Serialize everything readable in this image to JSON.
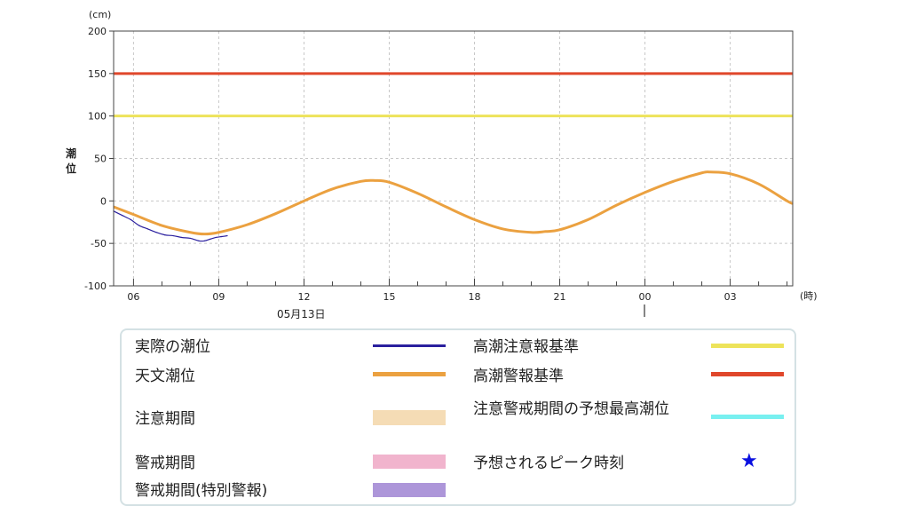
{
  "chart_data": {
    "type": "line",
    "y_unit": "(cm)",
    "ylabel": "潮位",
    "x_unit": "(時)",
    "date_label": "05月13日",
    "ylim": [
      -100,
      200
    ],
    "yticks": [
      200,
      150,
      100,
      50,
      0,
      -50,
      -100
    ],
    "xticks": [
      "06",
      "09",
      "12",
      "15",
      "18",
      "21",
      "00",
      "03"
    ],
    "xrange_hours": [
      5.3,
      29.2
    ],
    "grid": true,
    "thresholds": [
      {
        "name": "高潮警報基準",
        "value": 150,
        "color": "#e0472b"
      },
      {
        "name": "高潮注意報基準",
        "value": 100,
        "color": "#ede35a"
      }
    ],
    "series": [
      {
        "name": "天文潮位",
        "color": "#eba140",
        "x": [
          5.3,
          6,
          7,
          8,
          8.5,
          9,
          10,
          11,
          12,
          13,
          14,
          14.5,
          15,
          16,
          17,
          18,
          19,
          20,
          20.5,
          21,
          22,
          23,
          24,
          25,
          26,
          26.3,
          27,
          28,
          29,
          29.2
        ],
        "y": [
          -7,
          -16,
          -29,
          -37,
          -39,
          -37,
          -28,
          -15,
          0,
          14,
          23,
          24,
          22,
          9,
          -7,
          -22,
          -33,
          -37,
          -36,
          -34,
          -22,
          -5,
          10,
          23,
          33,
          34,
          32,
          20,
          0,
          -3
        ]
      },
      {
        "name": "実際の潮位",
        "color": "#2a1f9e",
        "x": [
          5.3,
          5.6,
          5.9,
          6.2,
          6.5,
          6.8,
          7.1,
          7.4,
          7.7,
          8.0,
          8.3,
          8.5,
          8.7,
          8.9,
          9.1,
          9.3
        ],
        "y": [
          -12,
          -17,
          -22,
          -29,
          -33,
          -37,
          -40,
          -41,
          -43,
          -44,
          -47,
          -47,
          -45,
          -43,
          -42,
          -41
        ]
      }
    ]
  },
  "legend": {
    "actual": "実際の潮位",
    "astro": "天文潮位",
    "caution_period": "注意期間",
    "warning_period": "警戒期間",
    "special_warning_period": "警戒期間(特別警報)",
    "advisory_level": "高潮注意報基準",
    "warning_level": "高潮警報基準",
    "max_forecast": "注意警戒期間の予想最高潮位",
    "peak_time": "予想されるピーク時刻",
    "colors": {
      "actual": "#2a1f9e",
      "astro": "#eba140",
      "caution_period": "#f5dcb5",
      "warning_period": "#f1b4cd",
      "special_warning_period": "#ad96d9",
      "advisory_level": "#ede35a",
      "warning_level": "#e0472b",
      "max_forecast": "#78f0f0",
      "peak_time": "#0a10e0"
    }
  }
}
